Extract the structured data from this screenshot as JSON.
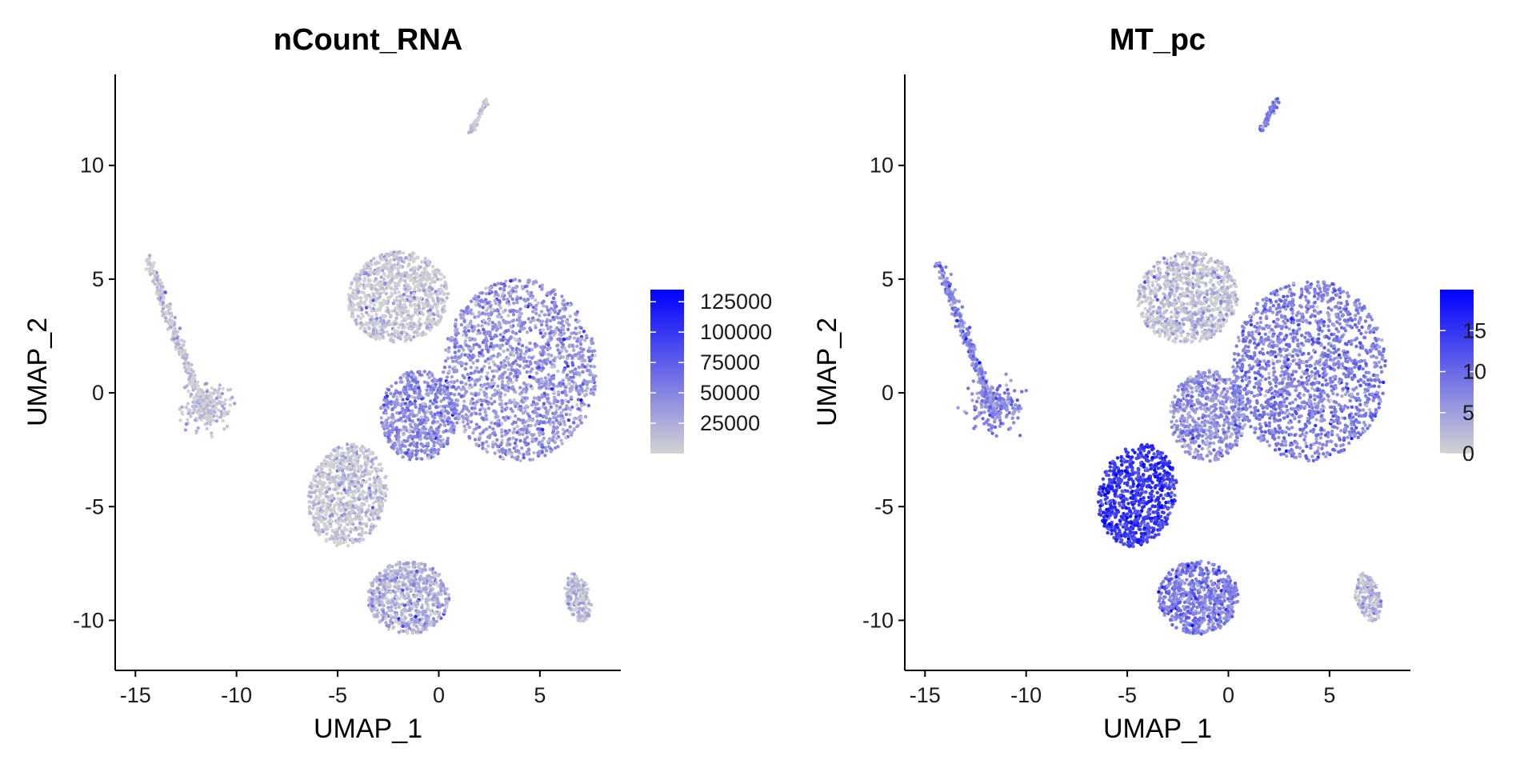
{
  "chart_data": [
    {
      "type": "scatter",
      "title": "nCount_RNA",
      "xlabel": "UMAP_1",
      "ylabel": "UMAP_2",
      "xlim": [
        -16,
        9
      ],
      "ylim": [
        -12.2,
        14
      ],
      "xticks": [
        -15,
        -10,
        -5,
        0,
        5
      ],
      "yticks": [
        -10,
        -5,
        0,
        5,
        10
      ],
      "xtick_labels": [
        "-15",
        "-10",
        "-5",
        "0",
        "5"
      ],
      "ytick_labels": [
        "-10",
        "-5",
        "0",
        "5",
        "10"
      ],
      "legend": {
        "min": 0,
        "max": 135000,
        "ticks": [
          25000,
          50000,
          75000,
          100000,
          125000
        ],
        "tick_labels": [
          "25000",
          "50000",
          "75000",
          "100000",
          "125000"
        ],
        "low_color": "#d3d3d3",
        "high_color": "#0000ff"
      },
      "clusters": [
        {
          "name": "top-left-streak",
          "cx": -12.0,
          "cy": -0.6,
          "level": 0.05
        },
        {
          "name": "top-center-blob",
          "cx": -2.0,
          "cy": 4.2,
          "level": 0.02
        },
        {
          "name": "right-large-blob",
          "cx": 4.0,
          "cy": 1.0,
          "level": 0.28
        },
        {
          "name": "middle-blob",
          "cx": -1.0,
          "cy": -1.0,
          "level": 0.32
        },
        {
          "name": "lower-left-blob",
          "cx": -4.5,
          "cy": -4.5,
          "level": 0.03
        },
        {
          "name": "bottom-blob",
          "cx": -1.5,
          "cy": -9.0,
          "level": 0.15
        },
        {
          "name": "bottom-right-cluster",
          "cx": 6.9,
          "cy": -9.0,
          "level": 0.1
        },
        {
          "name": "top-sliver",
          "cx": 2.0,
          "cy": 12.0,
          "level": 0.05
        }
      ]
    },
    {
      "type": "scatter",
      "title": "MT_pc",
      "xlabel": "UMAP_1",
      "ylabel": "UMAP_2",
      "xlim": [
        -16,
        9
      ],
      "ylim": [
        -12.2,
        14
      ],
      "xticks": [
        -15,
        -10,
        -5,
        0,
        5
      ],
      "yticks": [
        -10,
        -5,
        0,
        5,
        10
      ],
      "xtick_labels": [
        "-15",
        "-10",
        "-5",
        "0",
        "5"
      ],
      "ytick_labels": [
        "-10",
        "-5",
        "0",
        "5",
        "10"
      ],
      "legend": {
        "min": 0,
        "max": 20,
        "ticks": [
          0,
          5,
          10,
          15
        ],
        "tick_labels": [
          "0",
          "5",
          "10",
          "15"
        ],
        "low_color": "#d3d3d3",
        "high_color": "#0000ff"
      },
      "clusters": [
        {
          "name": "top-left-streak",
          "cx": -12.0,
          "cy": -0.6,
          "level": 0.35
        },
        {
          "name": "top-center-blob",
          "cx": -2.0,
          "cy": 4.2,
          "level": 0.06
        },
        {
          "name": "right-large-blob",
          "cx": 4.0,
          "cy": 1.0,
          "level": 0.38
        },
        {
          "name": "middle-blob",
          "cx": -1.0,
          "cy": -1.0,
          "level": 0.3
        },
        {
          "name": "lower-left-blob",
          "cx": -4.5,
          "cy": -4.5,
          "level": 0.72
        },
        {
          "name": "bottom-blob",
          "cx": -1.5,
          "cy": -9.0,
          "level": 0.4
        },
        {
          "name": "bottom-right-cluster",
          "cx": 6.9,
          "cy": -9.0,
          "level": 0.1
        },
        {
          "name": "top-sliver",
          "cx": 2.0,
          "cy": 12.0,
          "level": 0.4
        }
      ]
    }
  ]
}
